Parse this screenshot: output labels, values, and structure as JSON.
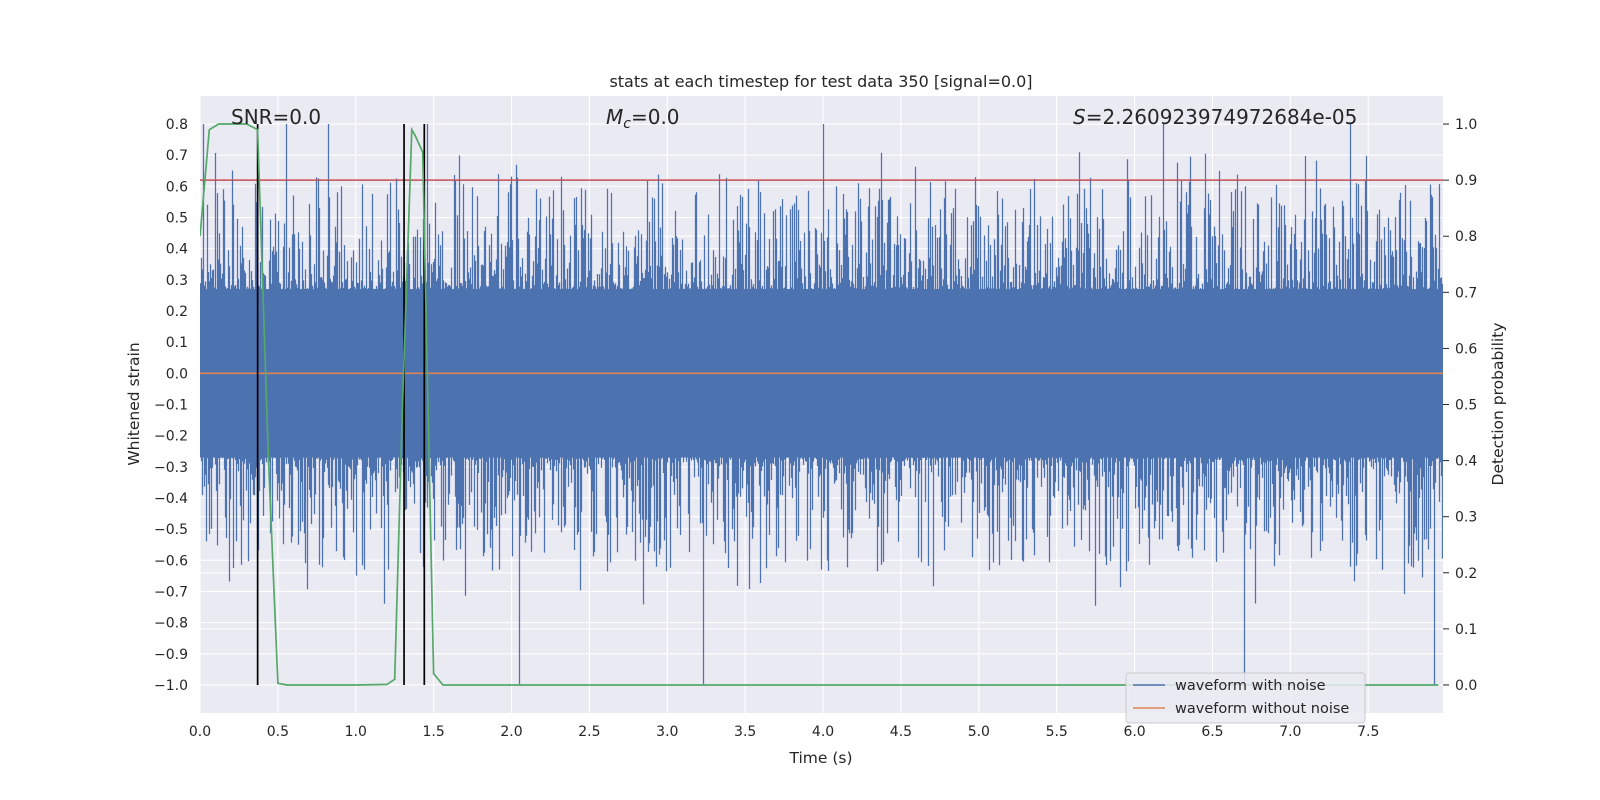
{
  "chart_data": {
    "type": "line",
    "title": "stats at each timestep for test data 350 [signal=0.0]",
    "xlabel": "Time (s)",
    "ylabel": "Whitened strain",
    "y2label": "Detection probability",
    "xlim": [
      0.0,
      7.98
    ],
    "ylim": [
      -1.09,
      0.89
    ],
    "y2lim": [
      -0.05,
      1.05
    ],
    "xticks": [
      0.0,
      0.5,
      1.0,
      1.5,
      2.0,
      2.5,
      3.0,
      3.5,
      4.0,
      4.5,
      5.0,
      5.5,
      6.0,
      6.5,
      7.0,
      7.5
    ],
    "xtick_labels": [
      "0.0",
      "0.5",
      "1.0",
      "1.5",
      "2.0",
      "2.5",
      "3.0",
      "3.5",
      "4.0",
      "4.5",
      "5.0",
      "5.5",
      "6.0",
      "6.5",
      "7.0",
      "7.5"
    ],
    "yticks": [
      0.8,
      0.7,
      0.6,
      0.5,
      0.4,
      0.3,
      0.2,
      0.1,
      0.0,
      -0.1,
      -0.2,
      -0.3,
      -0.4,
      -0.5,
      -0.6,
      -0.7,
      -0.8,
      -0.9,
      -1.0
    ],
    "ytick_labels": [
      "0.8",
      "0.7",
      "0.6",
      "0.5",
      "0.4",
      "0.3",
      "0.2",
      "0.1",
      "0.0",
      "−0.1",
      "−0.2",
      "−0.3",
      "−0.4",
      "−0.5",
      "−0.6",
      "−0.7",
      "−0.8",
      "−0.9",
      "−1.0"
    ],
    "y2ticks": [
      1.0,
      0.9,
      0.8,
      0.7,
      0.6,
      0.5,
      0.4,
      0.3,
      0.2,
      0.1,
      0.0
    ],
    "y2tick_labels": [
      "1.0",
      "0.9",
      "0.8",
      "0.7",
      "0.6",
      "0.5",
      "0.4",
      "0.3",
      "0.2",
      "0.1",
      "0.0"
    ],
    "annotations": {
      "snr": "SNR=0.0",
      "mc_symbol": "M",
      "mc_sub": "c",
      "mc_value": "=0.0",
      "s_symbol": "S",
      "s_value": "=2.260923974972684e-05"
    },
    "legend": {
      "position": "lower-right",
      "entries": [
        {
          "label": "waveform with noise",
          "color": "#4c72b0"
        },
        {
          "label": "waveform without noise",
          "color": "#dd8452"
        }
      ]
    },
    "noisy_waveform": {
      "color": "#4c72b0",
      "envelope": [
        0.27,
        -0.27
      ],
      "typical_extremes": [
        0.52,
        -0.52
      ],
      "max": 0.8,
      "min": -1.0,
      "spike_times_max": [
        0.02,
        0.55,
        0.82,
        1.46,
        4.0,
        6.18,
        7.38
      ],
      "spike_times_min": [
        2.05,
        3.23,
        6.7,
        7.92
      ]
    },
    "clean_waveform": {
      "color": "#dd8452",
      "value": 0.0
    },
    "threshold": {
      "color": "#c44e52",
      "probability": 0.9
    },
    "detection_probability": {
      "color": "#55a868",
      "x": [
        0.0,
        0.06,
        0.12,
        0.2,
        0.3,
        0.37,
        0.44,
        0.5,
        0.56,
        0.7,
        1.0,
        1.2,
        1.25,
        1.3,
        1.36,
        1.38,
        1.43,
        1.5,
        1.56,
        2.0,
        3.0,
        4.0,
        5.0,
        6.0,
        7.0,
        7.95
      ],
      "y": [
        0.8,
        0.99,
        1.0,
        1.0,
        1.0,
        0.99,
        0.4,
        0.003,
        0.0,
        0.0,
        0.0,
        0.001,
        0.01,
        0.5,
        0.99,
        0.98,
        0.95,
        0.02,
        0.0,
        0.0,
        0.0,
        0.0,
        0.0,
        0.0,
        0.0,
        0.0
      ]
    },
    "event_markers": {
      "color": "#000000",
      "x": [
        0.37,
        1.31,
        1.44
      ],
      "y_range": [
        -1.0,
        0.8
      ]
    }
  }
}
